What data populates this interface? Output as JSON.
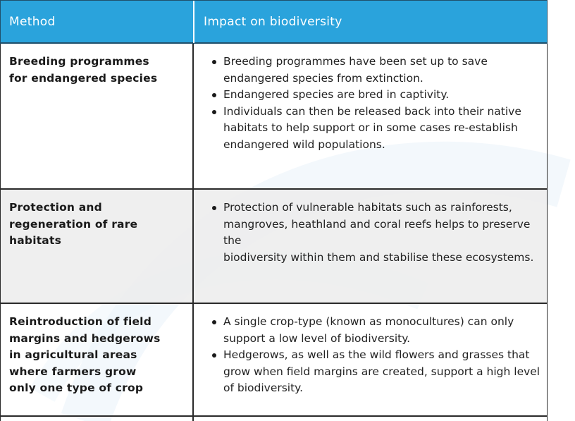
{
  "header": {
    "method_label": "Method",
    "impact_label": "Impact on biodiversity"
  },
  "rows": [
    {
      "method_lines": [
        "Breeding programmes",
        "for endangered species"
      ],
      "impact_items": [
        "Breeding programmes have been set up to save endangered species from extinction.",
        "Endangered species are bred in captivity.",
        "Individuals can then be released back into their native habitats to help support or in some cases re-establish endangered wild populations."
      ]
    },
    {
      "method_lines": [
        "Protection and",
        "regeneration of rare",
        "habitats"
      ],
      "impact_items": [
        "Protection of vulnerable habitats such as rainforests, mangroves, heathland and coral reefs helps to preserve the",
        "biodiversity within them and stabilise these ecosystems."
      ]
    },
    {
      "method_lines": [
        "Reintroduction of field",
        "margins and hedgerows",
        "in agricultural areas",
        "where farmers grow",
        "only one type of crop"
      ],
      "impact_items": [
        "A single crop-type (known as monocultures) can only support a low level of biodiversity.",
        "Hedgerows, as well as the wild flowers and grasses that grow when field margins are created, support a high level of biodiversity."
      ]
    }
  ],
  "colors": {
    "header_bg": "#2aa3dc",
    "border": "#2a2a2a",
    "shaded_row": "#ececec"
  }
}
